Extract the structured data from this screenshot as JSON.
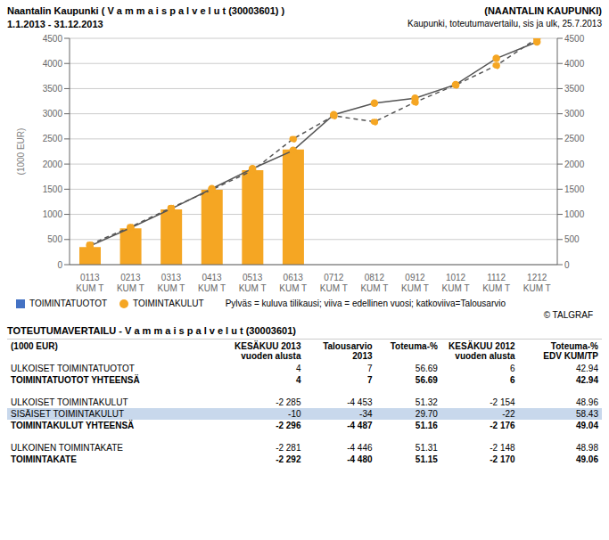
{
  "chart_data": {
    "type": "bar",
    "title": "Naantalin Kaupunki ( V a m m a i s p a l v e l u t (30003601) )",
    "subtitle": "1.1.2013 - 31.12.2013",
    "annotations": [
      "(NAANTALIN KAUPUNKI)",
      "Kaupunki, toteutumavertailu, sis ja ulk, 25.7.2013",
      "Pylväs = kuluva tilikausi; viiva = edellinen vuosi; katkoviiva=Talousarvio",
      "© TALGRAF"
    ],
    "ylabel": "(1000 EUR)",
    "categories": [
      "0113\nKUM T",
      "0213\nKUM T",
      "0313\nKUM T",
      "0413\nKUM T",
      "0513\nKUM T",
      "0613\nKUM T",
      "0712\nKUM T",
      "0812\nKUM T",
      "0912\nKUM T",
      "1012\nKUM T",
      "1112\nKUM T",
      "1212\nKUM T"
    ],
    "series": [
      {
        "name": "TOIMINTATUOTOT",
        "type": "bar",
        "color": "#4472C4",
        "values": [
          4,
          4,
          4,
          4,
          4,
          4,
          0,
          0,
          0,
          0,
          0,
          0
        ]
      },
      {
        "name": "TOIMINTAKULUT",
        "type": "bar",
        "color": "#F5A623",
        "marker": "circle",
        "values": [
          350,
          720,
          1100,
          1490,
          1880,
          2290,
          0,
          0,
          0,
          0,
          0,
          0
        ]
      },
      {
        "type": "line",
        "color": "#555555",
        "line_style": "solid",
        "marker": "circle",
        "values": [
          370,
          730,
          1110,
          1510,
          1910,
          2270,
          2980,
          3210,
          3310,
          3580,
          4100,
          4430
        ]
      },
      {
        "type": "line",
        "color": "#555555",
        "line_style": "dashed",
        "marker": "circle",
        "values": [
          400,
          750,
          1130,
          1490,
          1870,
          2500,
          2960,
          2840,
          3230,
          3570,
          3960,
          4500
        ]
      }
    ],
    "ylim": [
      0,
      4500
    ],
    "yticks": [
      0,
      500,
      1000,
      1500,
      2000,
      2500,
      3000,
      3500,
      4000,
      4500
    ],
    "y2lim": [
      0,
      4500
    ],
    "y2ticks": [
      0,
      500,
      1000,
      1500,
      2000,
      2500,
      3000,
      3500,
      4000,
      4500
    ],
    "grid": true,
    "legend": "bottom",
    "table": {
      "title": "TOTEUTUMAVERTAILU - V a m m a i s p a l v e l u t (30003601)",
      "headers": [
        [
          "(1000 EUR)",
          null
        ],
        [
          "KESÄKUU 2013",
          "vuoden alusta"
        ],
        [
          "Talousarvio 2013",
          null
        ],
        [
          "Toteuma-%",
          null
        ],
        [
          "KESÄKUU 2012",
          "vuoden alusta"
        ],
        [
          "Toteuma-%",
          "EDV KUM/TP"
        ]
      ],
      "rows": [
        {
          "label": "ULKOISET TOIMINTATUOTOT",
          "bold": false,
          "vals": [
            "4",
            "7",
            "56.69",
            "6",
            "42.94"
          ]
        },
        {
          "label": "TOIMINTATUOTOT YHTEENSÄ",
          "bold": true,
          "vals": [
            "4",
            "7",
            "56.69",
            "6",
            "42.94"
          ]
        },
        null,
        {
          "label": "ULKOISET TOIMINTAKULUT",
          "bold": false,
          "vals": [
            "-2 285",
            "-4 453",
            "51.32",
            "-2 154",
            "48.96"
          ]
        },
        {
          "label": "SISÄISET TOIMINTAKULUT",
          "bold": false,
          "color": "#C8D8EC",
          "vals": [
            "-10",
            "-34",
            "29.70",
            "-22",
            "58.43"
          ]
        },
        {
          "label": "TOIMINTAKULUT YHTEENSÄ",
          "bold": true,
          "vals": [
            "-2 296",
            "-4 487",
            "51.16",
            "-2 176",
            "49.04"
          ]
        },
        null,
        {
          "label": "ULKOINEN TOIMINTAKATE",
          "bold": false,
          "vals": [
            "-2 281",
            "-4 446",
            "51.31",
            "-2 148",
            "48.98"
          ]
        },
        {
          "label": "TOIMINTAKATE",
          "bold": true,
          "vals": [
            "-2 292",
            "-4 480",
            "51.15",
            "-2 170",
            "49.06"
          ]
        }
      ]
    }
  }
}
